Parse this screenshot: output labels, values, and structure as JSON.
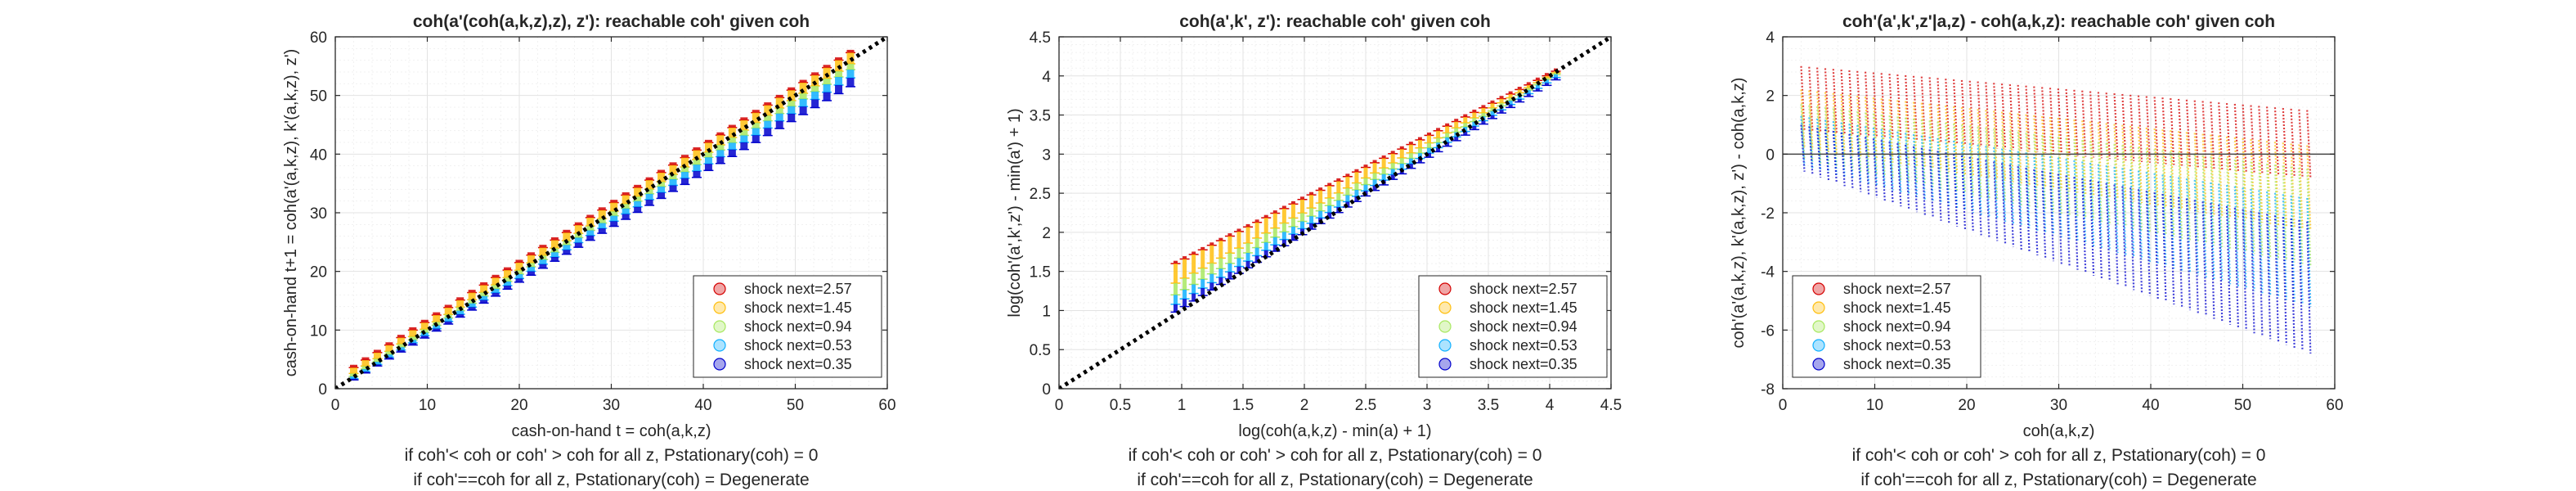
{
  "chart_data": [
    {
      "type": "scatter",
      "title": "coh(a'(coh(a,k,z),z), z'): reachable coh' given coh",
      "xlabel": "cash-on-hand t = coh(a,k,z)",
      "ylabel": "cash-on-hand t+1 = coh(a'(a,k,z), k'(a,k,z), z')",
      "notes": [
        "if coh'< coh or coh' > coh for all z, Pstationary(coh) = 0",
        "if coh'==coh for all z, Pstationary(coh) = Degenerate"
      ],
      "xlim": [
        0,
        60
      ],
      "ylim": [
        0,
        60
      ],
      "xticks": [
        0,
        10,
        20,
        30,
        40,
        50,
        60
      ],
      "yticks": [
        0,
        10,
        20,
        30,
        40,
        50,
        60
      ],
      "grid": "on",
      "legend_position": "bottom-right",
      "reference_line": "45-degree dotted",
      "series": [
        {
          "name": "shock next=2.57",
          "color": "#d40000",
          "x": [
            2,
            56
          ],
          "y": [
            3.6,
            57.3
          ]
        },
        {
          "name": "shock next=1.45",
          "color": "#ffbf10",
          "x": [
            2,
            56
          ],
          "y": [
            2.6,
            55.4
          ]
        },
        {
          "name": "shock next=0.94",
          "color": "#a8e860",
          "x": [
            2,
            56
          ],
          "y": [
            2.1,
            54.4
          ]
        },
        {
          "name": "shock next=0.53",
          "color": "#10b0ff",
          "x": [
            2,
            56
          ],
          "y": [
            1.7,
            53.0
          ]
        },
        {
          "name": "shock next=0.35",
          "color": "#0000cc",
          "x": [
            2,
            56
          ],
          "y": [
            1.5,
            51.5
          ]
        }
      ]
    },
    {
      "type": "scatter",
      "title": "coh(a',k', z'): reachable coh' given coh",
      "xlabel": "log(coh(a,k,z) - min(a) + 1)",
      "ylabel": "log(coh'(a',k',z') - min(a') + 1)",
      "notes": [
        "if coh'< coh or coh' > coh for all z, Pstationary(coh) = 0",
        "if coh'==coh for all z, Pstationary(coh) = Degenerate"
      ],
      "xlim": [
        0,
        4.5
      ],
      "ylim": [
        0,
        4.5
      ],
      "xticks": [
        0,
        0.5,
        1,
        1.5,
        2,
        2.5,
        3,
        3.5,
        4,
        4.5
      ],
      "yticks": [
        0,
        0.5,
        1,
        1.5,
        2,
        2.5,
        3,
        3.5,
        4,
        4.5
      ],
      "grid": "on",
      "legend_position": "bottom-right",
      "reference_line": "45-degree dotted",
      "series": [
        {
          "name": "shock next=2.57",
          "color": "#d40000",
          "x": [
            0.95,
            4.05
          ],
          "y": [
            1.6,
            4.06
          ]
        },
        {
          "name": "shock next=1.45",
          "color": "#ffbf10",
          "x": [
            0.95,
            4.05
          ],
          "y": [
            1.35,
            4.04
          ]
        },
        {
          "name": "shock next=0.94",
          "color": "#a8e860",
          "x": [
            0.95,
            4.05
          ],
          "y": [
            1.2,
            4.02
          ]
        },
        {
          "name": "shock next=0.53",
          "color": "#10b0ff",
          "x": [
            0.95,
            4.05
          ],
          "y": [
            1.08,
            3.98
          ]
        },
        {
          "name": "shock next=0.35",
          "color": "#0000cc",
          "x": [
            0.95,
            4.05
          ],
          "y": [
            0.98,
            3.95
          ]
        }
      ]
    },
    {
      "type": "scatter",
      "title": "coh'(a',k',z'|a,z) - coh(a,k,z): reachable coh' given coh",
      "xlabel": "coh(a,k,z)",
      "ylabel": "coh'(a'(a,k,z), k'(a,k,z), z') - coh(a,k,z)",
      "notes": [
        "if coh'< coh or coh' > coh for all z, Pstationary(coh) = 0",
        "if coh'==coh for all z, Pstationary(coh) = Degenerate"
      ],
      "xlim": [
        0,
        60
      ],
      "ylim": [
        -8,
        4
      ],
      "xticks": [
        0,
        10,
        20,
        30,
        40,
        50,
        60
      ],
      "yticks": [
        -8,
        -6,
        -4,
        -2,
        0,
        2,
        4
      ],
      "grid": "on",
      "legend_position": "bottom-left",
      "reference_line": "y = 0",
      "series": [
        {
          "name": "shock next=2.57",
          "color": "#d40000",
          "x": [
            2,
            57
          ],
          "y_top": [
            3.0,
            1.5
          ],
          "y_bottom": [
            0.8,
            -0.8
          ]
        },
        {
          "name": "shock next=1.45",
          "color": "#ffbf10",
          "x": [
            2,
            57
          ],
          "y_top": [
            2.2,
            0.3
          ],
          "y_bottom": [
            0.2,
            -2.6
          ]
        },
        {
          "name": "shock next=0.94",
          "color": "#a8e860",
          "x": [
            2,
            57
          ],
          "y_top": [
            1.7,
            -0.5
          ],
          "y_bottom": [
            -0.2,
            -3.8
          ]
        },
        {
          "name": "shock next=0.53",
          "color": "#10b0ff",
          "x": [
            2,
            57
          ],
          "y_top": [
            1.3,
            -1.5
          ],
          "y_bottom": [
            -0.4,
            -5.2
          ]
        },
        {
          "name": "shock next=0.35",
          "color": "#0000cc",
          "x": [
            2,
            57
          ],
          "y_top": [
            1.0,
            -2.3
          ],
          "y_bottom": [
            -0.6,
            -6.8
          ]
        }
      ]
    }
  ]
}
